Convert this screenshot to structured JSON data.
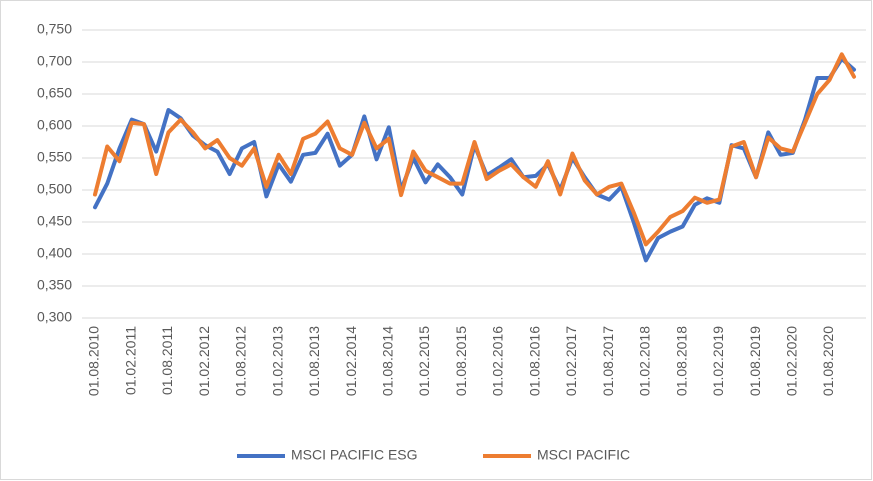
{
  "chart_data": {
    "type": "line",
    "categories": [
      "01.08.2010",
      null,
      null,
      "01.02.2011",
      null,
      null,
      "01.08.2011",
      null,
      null,
      "01.02.2012",
      null,
      null,
      "01.08.2012",
      null,
      null,
      "01.02.2013",
      null,
      null,
      "01.08.2013",
      null,
      null,
      "01.02.2014",
      null,
      null,
      "01.08.2014",
      null,
      null,
      "01.02.2015",
      null,
      null,
      "01.08.2015",
      null,
      null,
      "01.02.2016",
      null,
      null,
      "01.08.2016",
      null,
      null,
      "01.02.2017",
      null,
      null,
      "01.08.2017",
      null,
      null,
      "01.02.2018",
      null,
      null,
      "01.08.2018",
      null,
      null,
      "01.02.2019",
      null,
      null,
      "01.08.2019",
      null,
      null,
      "01.02.2020",
      null,
      null,
      "01.08.2020",
      null,
      null
    ],
    "series": [
      {
        "name": "MSCI PACIFIC ESG",
        "color": "#4472c4",
        "values": [
          0.473,
          0.51,
          0.565,
          0.61,
          0.603,
          0.56,
          0.625,
          0.612,
          0.585,
          0.57,
          0.56,
          0.525,
          0.565,
          0.575,
          0.49,
          0.54,
          0.513,
          0.555,
          0.558,
          0.588,
          0.538,
          0.555,
          0.615,
          0.548,
          0.598,
          0.5,
          0.55,
          0.512,
          0.54,
          0.52,
          0.493,
          0.57,
          0.523,
          0.535,
          0.548,
          0.52,
          0.522,
          0.54,
          0.5,
          0.55,
          0.52,
          0.493,
          0.485,
          0.505,
          0.45,
          0.39,
          0.425,
          0.435,
          0.443,
          0.477,
          0.487,
          0.48,
          0.57,
          0.565,
          0.52,
          0.59,
          0.555,
          0.558,
          0.61,
          0.675,
          0.675,
          0.705,
          0.688
        ]
      },
      {
        "name": "MSCI PACIFIC",
        "color": "#ed7d31",
        "values": [
          0.493,
          0.568,
          0.545,
          0.605,
          0.603,
          0.525,
          0.59,
          0.61,
          0.59,
          0.565,
          0.578,
          0.55,
          0.538,
          0.565,
          0.505,
          0.555,
          0.525,
          0.58,
          0.588,
          0.607,
          0.565,
          0.555,
          0.605,
          0.565,
          0.58,
          0.492,
          0.56,
          0.53,
          0.52,
          0.51,
          0.51,
          0.575,
          0.517,
          0.53,
          0.54,
          0.52,
          0.505,
          0.545,
          0.493,
          0.557,
          0.515,
          0.493,
          0.505,
          0.51,
          0.465,
          0.415,
          0.435,
          0.458,
          0.467,
          0.488,
          0.48,
          0.485,
          0.568,
          0.575,
          0.52,
          0.582,
          0.565,
          0.56,
          0.605,
          0.65,
          0.672,
          0.712,
          0.677
        ]
      }
    ],
    "ylim": [
      0.3,
      0.75
    ],
    "yticks": [
      {
        "value": 0.3,
        "label": "0,300"
      },
      {
        "value": 0.35,
        "label": "0,350"
      },
      {
        "value": 0.4,
        "label": "0,400"
      },
      {
        "value": 0.45,
        "label": "0,450"
      },
      {
        "value": 0.5,
        "label": "0,500"
      },
      {
        "value": 0.55,
        "label": "0,550"
      },
      {
        "value": 0.6,
        "label": "0,600"
      },
      {
        "value": 0.65,
        "label": "0,650"
      },
      {
        "value": 0.7,
        "label": "0,700"
      },
      {
        "value": 0.75,
        "label": "0,750"
      }
    ],
    "grid": true,
    "legend": "bottom"
  }
}
